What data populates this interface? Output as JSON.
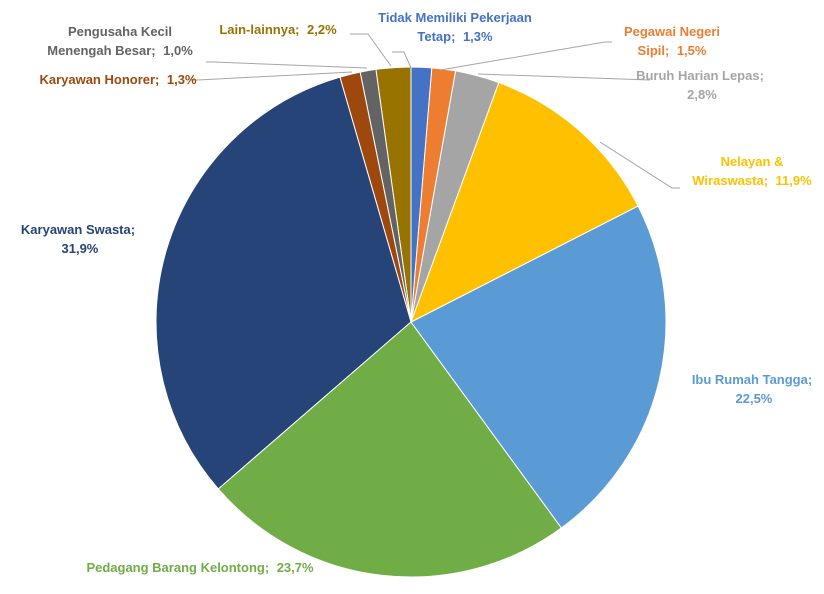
{
  "chart_data": {
    "type": "pie",
    "categories": [
      "Tidak Memiliki Pekerjaan Tetap;",
      "Pegawai Negeri Sipil;",
      "Buruh Harian Lepas;",
      "Nelayan & Wiraswasta;",
      "Ibu Rumah Tangga;",
      "Pedagang Barang Kelontong;",
      "Karyawan Swasta;",
      "Karyawan Honorer;",
      "Pengusaha Kecil Menengah Besar;",
      "Lain-lainnya;"
    ],
    "values": [
      1.3,
      1.5,
      2.8,
      11.9,
      22.5,
      23.7,
      31.9,
      1.3,
      1.0,
      2.2
    ],
    "value_labels": [
      "1,3%",
      "1,5%",
      "2,8%",
      "11,9%",
      "22,5%",
      "23,7%",
      "31,9%",
      "1,3%",
      "1,0%",
      "2,2%"
    ],
    "colors": [
      "#4472c4",
      "#ed7d31",
      "#a5a5a5",
      "#ffc000",
      "#5b9bd5",
      "#70ad47",
      "#264478",
      "#9e480e",
      "#636363",
      "#997300"
    ]
  }
}
